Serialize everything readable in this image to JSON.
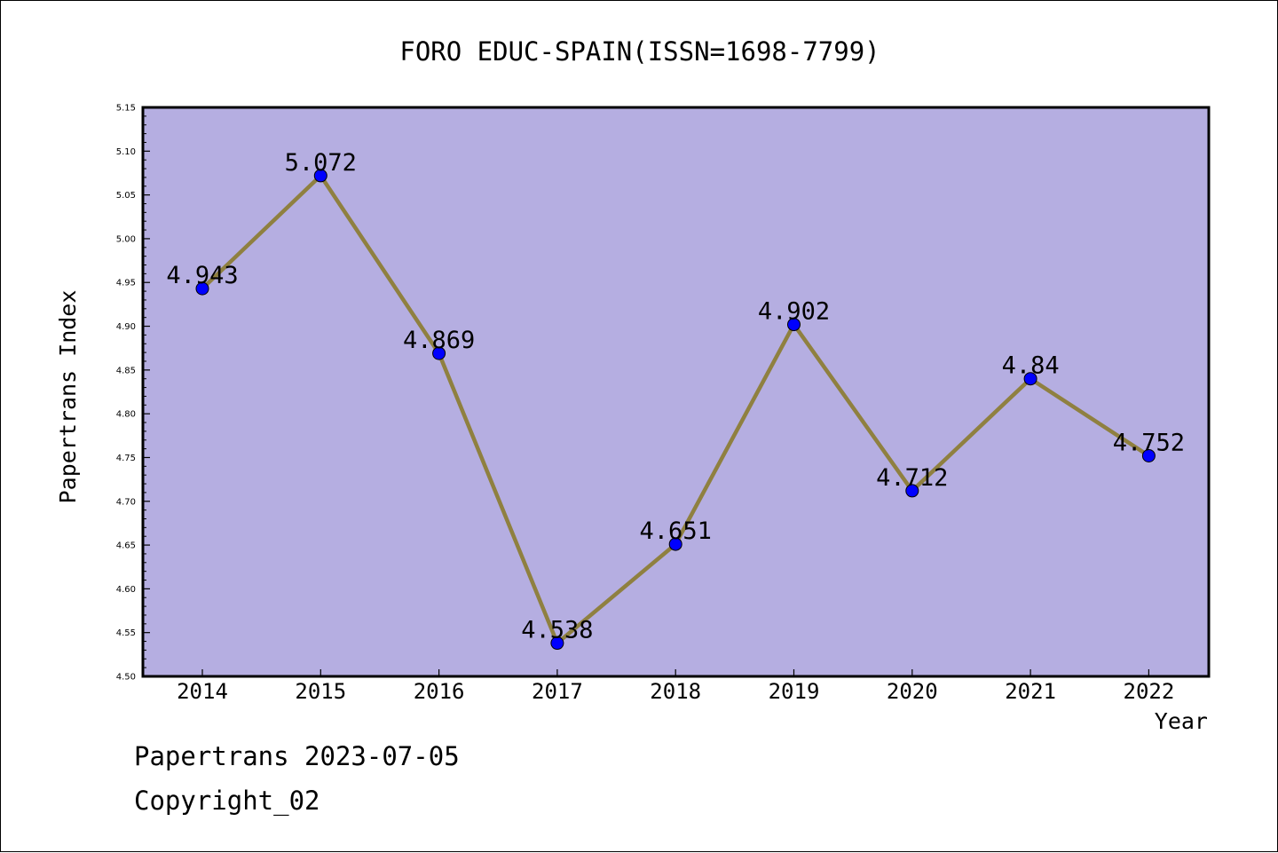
{
  "chart_data": {
    "type": "line",
    "title": "FORO EDUC-SPAIN(ISSN=1698-7799)",
    "xlabel": "Year",
    "ylabel": "Papertrans Index",
    "categories": [
      "2014",
      "2015",
      "2016",
      "2017",
      "2018",
      "2019",
      "2020",
      "2021",
      "2022"
    ],
    "values": [
      4.943,
      5.072,
      4.869,
      4.538,
      4.651,
      4.902,
      4.712,
      4.84,
      4.752
    ],
    "data_labels": [
      "4.943",
      "5.072",
      "4.869",
      "4.538",
      "4.651",
      "4.902",
      "4.712",
      "4.84",
      "4.752"
    ],
    "ylim": [
      4.5,
      5.15
    ],
    "yticks": [
      "4.50",
      "4.55",
      "4.60",
      "4.65",
      "4.70",
      "4.75",
      "4.80",
      "4.85",
      "4.90",
      "4.95",
      "5.00",
      "5.05",
      "5.10",
      "5.15"
    ],
    "grid": false,
    "colors": {
      "plot_background": "#b5aee1",
      "line": "#8f8040",
      "marker": "#0000ff"
    }
  },
  "footer": {
    "date_line": "Papertrans 2023-07-05",
    "copyright_line": "Copyright_02"
  }
}
